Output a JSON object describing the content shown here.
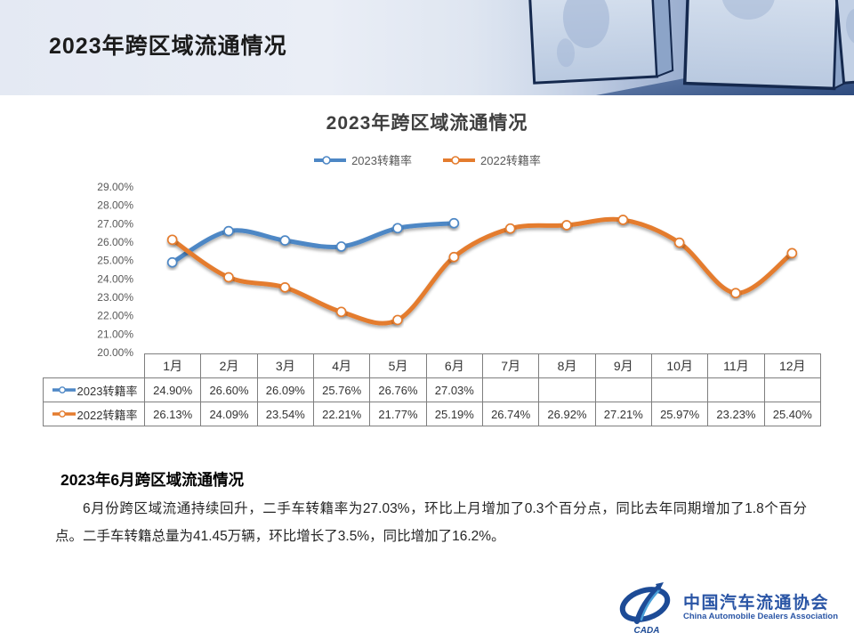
{
  "header": {
    "title": "2023年跨区域流通情况"
  },
  "chart_data": {
    "type": "line",
    "title": "2023年跨区域流通情况",
    "categories": [
      "1月",
      "2月",
      "3月",
      "4月",
      "5月",
      "6月",
      "7月",
      "8月",
      "9月",
      "10月",
      "11月",
      "12月"
    ],
    "series": [
      {
        "name": "2023转籍率",
        "color": "#4d87c5",
        "values": [
          24.9,
          26.6,
          26.09,
          25.76,
          26.76,
          27.03,
          null,
          null,
          null,
          null,
          null,
          null
        ]
      },
      {
        "name": "2022转籍率",
        "color": "#e47c2e",
        "values": [
          26.13,
          24.09,
          23.54,
          22.21,
          21.77,
          25.19,
          26.74,
          26.92,
          27.21,
          25.97,
          23.23,
          25.4
        ]
      }
    ],
    "ylim": [
      20,
      29
    ],
    "ytick_labels": [
      "29.00%",
      "28.00%",
      "27.00%",
      "26.00%",
      "25.00%",
      "24.00%",
      "23.00%",
      "22.00%",
      "21.00%",
      "20.00%"
    ],
    "grid": false,
    "legend_position": "top",
    "smooth": true
  },
  "table": {
    "columns": [
      "1月",
      "2月",
      "3月",
      "4月",
      "5月",
      "6月",
      "7月",
      "8月",
      "9月",
      "10月",
      "11月",
      "12月"
    ],
    "rows": [
      {
        "label": "2023转籍率",
        "color": "#4d87c5",
        "values": [
          "24.90%",
          "26.60%",
          "26.09%",
          "25.76%",
          "26.76%",
          "27.03%",
          "",
          "",
          "",
          "",
          "",
          ""
        ]
      },
      {
        "label": "2022转籍率",
        "color": "#e47c2e",
        "values": [
          "26.13%",
          "24.09%",
          "23.54%",
          "22.21%",
          "21.77%",
          "25.19%",
          "26.74%",
          "26.92%",
          "27.21%",
          "25.97%",
          "23.23%",
          "25.40%"
        ]
      }
    ]
  },
  "summary": {
    "heading": "2023年6月跨区域流通情况",
    "body": "6月份跨区域流通持续回升，二手车转籍率为27.03%，环比上月增加了0.3个百分点，同比去年同期增加了1.8个百分点。二手车转籍总量为41.45万辆，环比增长了3.5%，同比增加了16.2%。"
  },
  "logo": {
    "mark": "CADA",
    "cn": "中国汽车流通协会",
    "en": "China Automobile Dealers Association"
  }
}
